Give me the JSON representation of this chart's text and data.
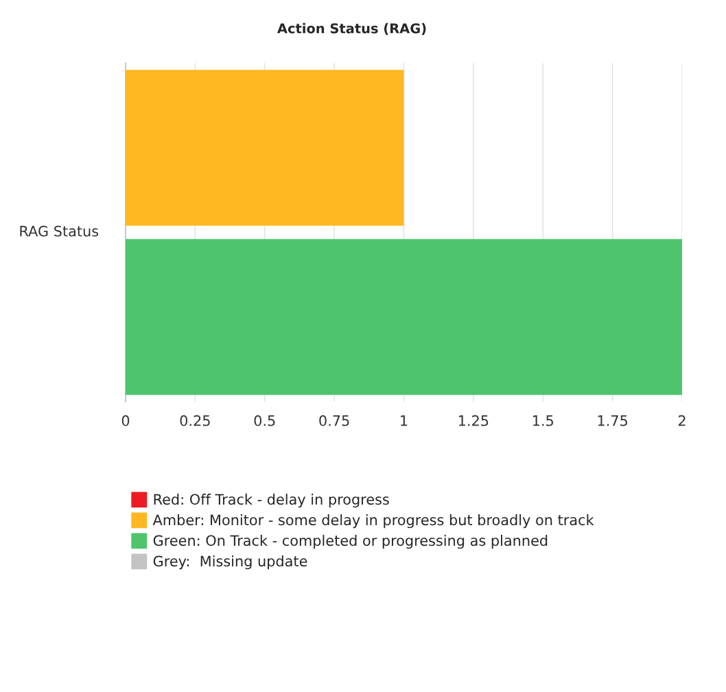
{
  "chart_data": {
    "type": "bar",
    "orientation": "horizontal",
    "title": "Action Status (RAG)",
    "ylabel": "RAG Status",
    "categories": [
      null,
      null
    ],
    "series": [
      {
        "name": "Red: Off Track - delay in progress",
        "color": "#ed1c24",
        "values": [
          null,
          null
        ]
      },
      {
        "name": "Amber: Monitor - some delay in progress but broadly on track",
        "color": "#ffb822",
        "values": [
          1,
          null
        ]
      },
      {
        "name": "Green: On Track - completed or progressing as planned",
        "color": "#4ec46c",
        "values": [
          null,
          2
        ]
      },
      {
        "name": "Grey:  Missing update",
        "color": "#c3c3c3",
        "values": [
          null,
          null
        ]
      }
    ],
    "xlim": [
      0,
      2
    ],
    "xticks": [
      0,
      0.25,
      0.5,
      0.75,
      1,
      1.25,
      1.5,
      1.75,
      2
    ],
    "grid": "x",
    "legend": "bottom"
  }
}
